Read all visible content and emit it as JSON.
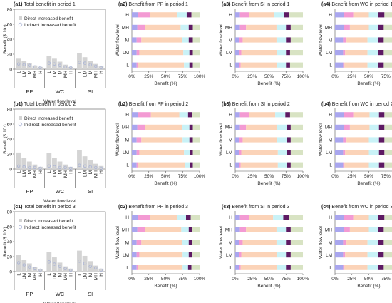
{
  "colors": {
    "direct_bar": "#d4d4d4",
    "indirect_marker": "#aab4d6",
    "axis": "#555555",
    "grid": "#e6e6e6",
    "seg": [
      "#a9a6ee",
      "#f39ad3",
      "#fbd3b8",
      "#c9f2f7",
      "#5d1a63",
      "#d8e3c3"
    ]
  },
  "chart_data": [
    {
      "id": "a1",
      "type": "bar",
      "title": "Total benefit in period 1",
      "xlabel": "Water flow level",
      "ylabel": "Benefit ($ 10⁷)",
      "ylim": [
        0,
        80
      ],
      "yticks": [
        0,
        20,
        40,
        60,
        80
      ],
      "groups": [
        "PP",
        "WC",
        "SI"
      ],
      "categories": [
        "L",
        "LM",
        "M",
        "MH",
        "H"
      ],
      "series": [
        {
          "name": "Direct increased benefit",
          "values": [
            [
              14,
              11,
              8,
              5,
              3
            ],
            [
              18,
              14,
              10,
              6,
              3
            ],
            [
              21,
              16,
              11,
              7,
              4
            ]
          ]
        },
        {
          "name": "Indirect increased benefit",
          "values": [
            [
              7,
              6,
              5,
              3,
              2
            ],
            [
              8,
              7,
              5,
              3,
              2
            ],
            [
              9,
              8,
              6,
              4,
              2
            ]
          ]
        }
      ]
    },
    {
      "id": "b1",
      "type": "bar",
      "title": "Total benefit in period 2",
      "xlabel": "Water flow level",
      "ylabel": "Benefit ($ 10⁷)",
      "ylim": [
        0,
        80
      ],
      "yticks": [
        0,
        20,
        40,
        60,
        80
      ],
      "groups": [
        "PP",
        "WC",
        "SI"
      ],
      "categories": [
        "L",
        "LM",
        "M",
        "MH",
        "H"
      ],
      "series": [
        {
          "name": "Direct increased benefit",
          "values": [
            [
              22,
              15,
              10,
              6,
              3
            ],
            [
              21,
              15,
              10,
              6,
              3
            ],
            [
              25,
              17,
              12,
              7,
              4
            ]
          ]
        },
        {
          "name": "Indirect increased benefit",
          "values": [
            [
              4,
              3,
              2,
              2,
              1
            ],
            [
              4,
              3,
              2,
              2,
              1
            ],
            [
              5,
              4,
              3,
              2,
              1
            ]
          ]
        }
      ]
    },
    {
      "id": "c1",
      "type": "bar",
      "title": "Total benefit in period 3",
      "xlabel": "Water flow level",
      "ylabel": "Benefit ($ 10⁷)",
      "ylim": [
        0,
        80
      ],
      "yticks": [
        0,
        20,
        40,
        60,
        80
      ],
      "groups": [
        "PP",
        "WC",
        "SI"
      ],
      "categories": [
        "L",
        "LM",
        "M",
        "MH",
        "H"
      ],
      "series": [
        {
          "name": "Direct increased benefit",
          "values": [
            [
              22,
              16,
              11,
              6,
              3
            ],
            [
              26,
              19,
              12,
              7,
              4
            ],
            [
              28,
              21,
              14,
              8,
              4
            ]
          ]
        },
        {
          "name": "Indirect increased benefit",
          "values": [
            [
              12,
              9,
              6,
              4,
              2
            ],
            [
              13,
              10,
              7,
              4,
              2
            ],
            [
              14,
              11,
              7,
              5,
              2
            ]
          ]
        }
      ]
    },
    {
      "id": "a2",
      "type": "bar",
      "stacked": true,
      "title": "Benefit from PP in period 1",
      "xlabel": "Benefit (%)",
      "ylabel": "Water flow level",
      "xlim": [
        0,
        100
      ],
      "categories": [
        "L",
        "LM",
        "M",
        "MH",
        "H"
      ],
      "values": [
        [
          7,
          2,
          68,
          8,
          5,
          10
        ],
        [
          7,
          4,
          65,
          9,
          5,
          10
        ],
        [
          7,
          7,
          60,
          10,
          6,
          10
        ],
        [
          8,
          12,
          52,
          12,
          6,
          10
        ],
        [
          9,
          18,
          40,
          14,
          7,
          12
        ]
      ]
    },
    {
      "id": "a3",
      "type": "bar",
      "stacked": true,
      "title": "Benefit from SI in period 1",
      "xlabel": "Benefit (%)",
      "ylabel": "Water flow level",
      "xlim": [
        0,
        100
      ],
      "categories": [
        "L",
        "LM",
        "M",
        "MH",
        "H"
      ],
      "values": [
        [
          6,
          2,
          54,
          13,
          6,
          19
        ],
        [
          6,
          3,
          53,
          13,
          6,
          19
        ],
        [
          6,
          5,
          50,
          14,
          7,
          18
        ],
        [
          7,
          9,
          45,
          14,
          7,
          18
        ],
        [
          7,
          14,
          36,
          15,
          8,
          20
        ]
      ]
    },
    {
      "id": "a4",
      "type": "bar",
      "stacked": true,
      "title": "Benefit from WC in period 1",
      "xlabel": "Benefit (%)",
      "ylabel": "Water flow level",
      "xlim": [
        0,
        100
      ],
      "categories": [
        "L",
        "LM",
        "M",
        "MH",
        "H"
      ],
      "values": [
        [
          12,
          2,
          34,
          16,
          8,
          28
        ],
        [
          12,
          3,
          33,
          16,
          8,
          28
        ],
        [
          12,
          5,
          31,
          16,
          8,
          28
        ],
        [
          13,
          9,
          28,
          14,
          8,
          28
        ],
        [
          13,
          14,
          23,
          14,
          9,
          27
        ]
      ]
    },
    {
      "id": "b2",
      "type": "bar",
      "stacked": true,
      "title": "Benefit from PP in period 2",
      "xlabel": "Benefit (%)",
      "ylabel": "Water flow level",
      "xlim": [
        0,
        100
      ],
      "categories": [
        "L",
        "LM",
        "M",
        "MH",
        "H"
      ],
      "values": [
        [
          7,
          2,
          69,
          8,
          4,
          10
        ],
        [
          7,
          4,
          66,
          9,
          4,
          10
        ],
        [
          7,
          7,
          61,
          10,
          5,
          10
        ],
        [
          8,
          12,
          54,
          11,
          5,
          10
        ],
        [
          9,
          19,
          42,
          13,
          6,
          11
        ]
      ]
    },
    {
      "id": "b3",
      "type": "bar",
      "stacked": true,
      "title": "Benefit from SI in period 2",
      "xlabel": "Benefit (%)",
      "ylabel": "Water flow level",
      "xlim": [
        0,
        100
      ],
      "categories": [
        "L",
        "LM",
        "M",
        "MH",
        "H"
      ],
      "values": [
        [
          6,
          2,
          55,
          13,
          6,
          18
        ],
        [
          6,
          3,
          54,
          13,
          6,
          18
        ],
        [
          6,
          5,
          51,
          14,
          6,
          18
        ],
        [
          7,
          9,
          46,
          14,
          6,
          18
        ],
        [
          7,
          14,
          38,
          15,
          7,
          19
        ]
      ]
    },
    {
      "id": "b4",
      "type": "bar",
      "stacked": true,
      "title": "Benefit from WC in period 2",
      "xlabel": "Benefit (%)",
      "ylabel": "Water flow level",
      "xlim": [
        0,
        100
      ],
      "categories": [
        "L",
        "LM",
        "M",
        "MH",
        "H"
      ],
      "values": [
        [
          12,
          2,
          36,
          15,
          8,
          27
        ],
        [
          12,
          3,
          35,
          15,
          8,
          27
        ],
        [
          12,
          5,
          33,
          15,
          8,
          27
        ],
        [
          13,
          9,
          29,
          14,
          8,
          27
        ],
        [
          13,
          14,
          24,
          14,
          8,
          27
        ]
      ]
    },
    {
      "id": "c2",
      "type": "bar",
      "stacked": true,
      "title": "Benefit from PP in period  3",
      "xlabel": "Benefit (%)",
      "ylabel": "Water flow level",
      "xlim": [
        0,
        100
      ],
      "categories": [
        "L",
        "LM",
        "M",
        "MH",
        "H"
      ],
      "values": [
        [
          7,
          2,
          66,
          8,
          5,
          12
        ],
        [
          7,
          4,
          64,
          9,
          5,
          11
        ],
        [
          7,
          7,
          60,
          10,
          5,
          11
        ],
        [
          8,
          12,
          53,
          11,
          5,
          11
        ],
        [
          9,
          18,
          40,
          13,
          7,
          13
        ]
      ]
    },
    {
      "id": "c3",
      "type": "bar",
      "stacked": true,
      "title": "Benefit from SI in period 3",
      "xlabel": "Benefit (%)",
      "ylabel": "Water flow level",
      "xlim": [
        0,
        100
      ],
      "categories": [
        "L",
        "LM",
        "M",
        "MH",
        "H"
      ],
      "values": [
        [
          6,
          2,
          54,
          13,
          7,
          18
        ],
        [
          6,
          3,
          53,
          13,
          7,
          18
        ],
        [
          6,
          5,
          50,
          14,
          7,
          18
        ],
        [
          7,
          9,
          45,
          14,
          7,
          18
        ],
        [
          7,
          14,
          35,
          15,
          8,
          21
        ]
      ]
    },
    {
      "id": "c4",
      "type": "bar",
      "stacked": true,
      "title": "Benefit from WC in period 3",
      "xlabel": "Benefit (%)",
      "ylabel": "Water flow level",
      "xlim": [
        0,
        100
      ],
      "categories": [
        "L",
        "LM",
        "M",
        "MH",
        "H"
      ],
      "values": [
        [
          12,
          2,
          34,
          16,
          8,
          28
        ],
        [
          12,
          3,
          33,
          16,
          8,
          28
        ],
        [
          12,
          5,
          31,
          16,
          8,
          28
        ],
        [
          13,
          9,
          28,
          14,
          8,
          28
        ],
        [
          13,
          14,
          23,
          14,
          9,
          27
        ]
      ]
    }
  ]
}
